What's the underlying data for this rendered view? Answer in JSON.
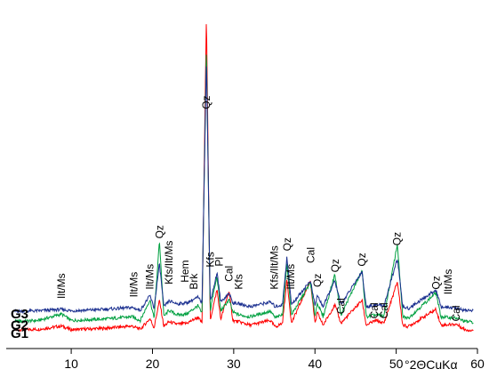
{
  "chart_data": {
    "type": "line",
    "xlabel": "°2ΘCuKα",
    "ylabel": "",
    "xlim": [
      2,
      60
    ],
    "x_ticks": [
      "10",
      "20",
      "30",
      "40",
      "50",
      "60"
    ],
    "grid": false,
    "series": [
      {
        "name": "G1",
        "color": "#ff0000",
        "baseline": 0,
        "points": [
          [
            3,
            8
          ],
          [
            6,
            9
          ],
          [
            8.8,
            16
          ],
          [
            10,
            8
          ],
          [
            14,
            11
          ],
          [
            17.5,
            16
          ],
          [
            18.5,
            9
          ],
          [
            19.7,
            32
          ],
          [
            20.2,
            12
          ],
          [
            20.86,
            72
          ],
          [
            21.4,
            15
          ],
          [
            22.0,
            25
          ],
          [
            23.1,
            20
          ],
          [
            24.2,
            22
          ],
          [
            25.6,
            35
          ],
          [
            26.1,
            22
          ],
          [
            26.64,
            700
          ],
          [
            27.1,
            28
          ],
          [
            27.5,
            60
          ],
          [
            27.95,
            95
          ],
          [
            28.4,
            30
          ],
          [
            29.42,
            92
          ],
          [
            29.9,
            28
          ],
          [
            30.7,
            25
          ],
          [
            32,
            18
          ],
          [
            34.5,
            28
          ],
          [
            35.1,
            14
          ],
          [
            36.0,
            22
          ],
          [
            36.55,
            118
          ],
          [
            37.1,
            22
          ],
          [
            39.45,
            115
          ],
          [
            40.0,
            20
          ],
          [
            40.3,
            45
          ],
          [
            41.0,
            18
          ],
          [
            42.45,
            62
          ],
          [
            43.2,
            22
          ],
          [
            45.8,
            72
          ],
          [
            46.3,
            18
          ],
          [
            47.5,
            28
          ],
          [
            48.5,
            22
          ],
          [
            50.15,
            112
          ],
          [
            50.8,
            18
          ],
          [
            51.5,
            15
          ],
          [
            54.9,
            52
          ],
          [
            55.5,
            18
          ],
          [
            57.4,
            20
          ],
          [
            58.5,
            8
          ],
          [
            60,
            6
          ]
        ]
      },
      {
        "name": "G2",
        "color": "#00a040",
        "baseline": 18,
        "points": [
          [
            3,
            8
          ],
          [
            6,
            10
          ],
          [
            8.8,
            24
          ],
          [
            10,
            10
          ],
          [
            14,
            13
          ],
          [
            17.5,
            18
          ],
          [
            18.5,
            10
          ],
          [
            19.7,
            55
          ],
          [
            20.2,
            14
          ],
          [
            20.86,
            185
          ],
          [
            21.4,
            18
          ],
          [
            22.0,
            32
          ],
          [
            23.1,
            22
          ],
          [
            24.2,
            24
          ],
          [
            25.6,
            42
          ],
          [
            26.1,
            24
          ],
          [
            26.64,
            610
          ],
          [
            27.1,
            30
          ],
          [
            27.5,
            68
          ],
          [
            27.95,
            105
          ],
          [
            28.4,
            30
          ],
          [
            29.42,
            55
          ],
          [
            29.9,
            28
          ],
          [
            30.7,
            22
          ],
          [
            32,
            18
          ],
          [
            34.5,
            30
          ],
          [
            35.1,
            16
          ],
          [
            36.0,
            22
          ],
          [
            36.55,
            135
          ],
          [
            37.1,
            22
          ],
          [
            39.45,
            92
          ],
          [
            40.0,
            20
          ],
          [
            40.3,
            48
          ],
          [
            41.0,
            18
          ],
          [
            42.45,
            110
          ],
          [
            43.2,
            22
          ],
          [
            45.8,
            118
          ],
          [
            46.3,
            18
          ],
          [
            47.5,
            22
          ],
          [
            48.5,
            20
          ],
          [
            50.15,
            175
          ],
          [
            50.8,
            18
          ],
          [
            51.5,
            15
          ],
          [
            54.9,
            70
          ],
          [
            55.5,
            18
          ],
          [
            57.4,
            15
          ],
          [
            58.5,
            8
          ],
          [
            60,
            6
          ]
        ]
      },
      {
        "name": "G3",
        "color": "#1a2f8f",
        "baseline": 42,
        "points": [
          [
            3,
            6
          ],
          [
            6,
            7
          ],
          [
            8.8,
            10
          ],
          [
            10,
            7
          ],
          [
            14,
            10
          ],
          [
            17.5,
            14
          ],
          [
            18.5,
            8
          ],
          [
            19.7,
            40
          ],
          [
            20.2,
            12
          ],
          [
            20.86,
            110
          ],
          [
            21.4,
            15
          ],
          [
            22.0,
            28
          ],
          [
            23.1,
            22
          ],
          [
            24.2,
            24
          ],
          [
            25.6,
            36
          ],
          [
            26.1,
            24
          ],
          [
            26.64,
            560
          ],
          [
            27.1,
            28
          ],
          [
            27.5,
            55
          ],
          [
            27.95,
            90
          ],
          [
            28.4,
            26
          ],
          [
            29.42,
            45
          ],
          [
            29.9,
            24
          ],
          [
            30.7,
            22
          ],
          [
            32,
            16
          ],
          [
            34.5,
            26
          ],
          [
            35.1,
            16
          ],
          [
            36.0,
            20
          ],
          [
            36.55,
            125
          ],
          [
            37.1,
            20
          ],
          [
            39.45,
            72
          ],
          [
            40.0,
            18
          ],
          [
            40.3,
            40
          ],
          [
            41.0,
            16
          ],
          [
            42.45,
            72
          ],
          [
            43.2,
            20
          ],
          [
            45.8,
            92
          ],
          [
            46.3,
            16
          ],
          [
            47.5,
            20
          ],
          [
            48.5,
            18
          ],
          [
            50.15,
            120
          ],
          [
            50.8,
            16
          ],
          [
            51.5,
            12
          ],
          [
            54.9,
            52
          ],
          [
            55.5,
            16
          ],
          [
            57.4,
            12
          ],
          [
            58.5,
            8
          ],
          [
            60,
            8
          ]
        ]
      }
    ],
    "annotations": [
      {
        "text": "Ilt/Ms",
        "x": 8.8,
        "y": 75
      },
      {
        "text": "Ilt/Ms",
        "x": 17.7,
        "y": 78
      },
      {
        "text": "Ilt/Ms",
        "x": 19.7,
        "y": 95
      },
      {
        "text": "Qz",
        "x": 20.9,
        "y": 205
      },
      {
        "text": "Kfs/Ilt/Ms",
        "x": 22.0,
        "y": 106
      },
      {
        "text": "Hem",
        "x": 24.0,
        "y": 110
      },
      {
        "text": "Brk",
        "x": 25.1,
        "y": 95
      },
      {
        "text": "Qz",
        "x": 26.6,
        "y": 485
      },
      {
        "text": "Kfs",
        "x": 27.1,
        "y": 143
      },
      {
        "text": "Pl",
        "x": 28.2,
        "y": 145
      },
      {
        "text": "Cal",
        "x": 29.4,
        "y": 112
      },
      {
        "text": "Kfs",
        "x": 30.6,
        "y": 95
      },
      {
        "text": "Kfs/Ilt/Ms",
        "x": 35.0,
        "y": 95
      },
      {
        "text": "Qz",
        "x": 36.6,
        "y": 178
      },
      {
        "text": "Ilt/Ms",
        "x": 37.0,
        "y": 95
      },
      {
        "text": "Cal",
        "x": 39.5,
        "y": 152
      },
      {
        "text": "Qz",
        "x": 40.3,
        "y": 100
      },
      {
        "text": "Qz",
        "x": 42.5,
        "y": 132
      },
      {
        "text": "Cal",
        "x": 43.2,
        "y": 42
      },
      {
        "text": "Qz",
        "x": 45.8,
        "y": 145
      },
      {
        "text": "Cal",
        "x": 47.3,
        "y": 32
      },
      {
        "text": "Cal",
        "x": 48.5,
        "y": 32
      },
      {
        "text": "Qz",
        "x": 50.1,
        "y": 190
      },
      {
        "text": "Qz",
        "x": 54.9,
        "y": 95
      },
      {
        "text": "Ilt/Ms",
        "x": 56.4,
        "y": 84
      },
      {
        "text": "Cal",
        "x": 57.4,
        "y": 26
      }
    ],
    "legend": "none"
  }
}
